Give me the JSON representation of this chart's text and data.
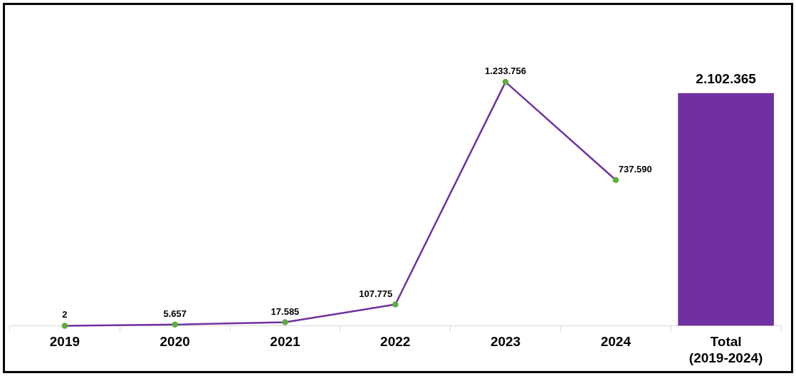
{
  "chart_data": {
    "type": "line",
    "categories": [
      "2019",
      "2020",
      "2021",
      "2022",
      "2023",
      "2024",
      "Total\n(2019-2024)"
    ],
    "marker": "circle",
    "series": [
      {
        "color": "#7030a0",
        "colors": [
          "#5fad41",
          "#5fad41",
          "#5fad41",
          "#5fad41",
          "#5fad41",
          "#5fad41",
          null
        ],
        "values": [
          2,
          5657,
          17585,
          107775,
          1233756,
          737590,
          null
        ],
        "value_labels": [
          "2",
          "5.657",
          "17.585",
          "107.775",
          "1.233.756",
          "737.590",
          null
        ]
      },
      {
        "type": "bar",
        "axis": "y2",
        "color": "#7030a0",
        "values": [
          null,
          null,
          null,
          null,
          null,
          null,
          2102365
        ],
        "value_labels": [
          null,
          null,
          null,
          null,
          null,
          null,
          "2.102.365"
        ]
      }
    ]
  }
}
